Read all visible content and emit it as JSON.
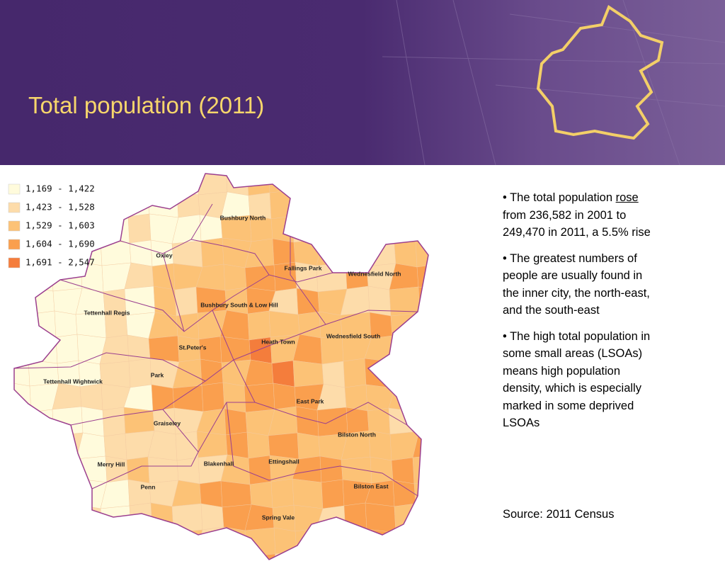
{
  "header": {
    "title": "Total population (2011)"
  },
  "legend": {
    "items": [
      {
        "label": "1,169 - 1,422",
        "color": "#fffbdc"
      },
      {
        "label": "1,423 - 1,528",
        "color": "#fddcaa"
      },
      {
        "label": "1,529 - 1,603",
        "color": "#fcc276"
      },
      {
        "label": "1,604 - 1,690",
        "color": "#fa9f4e"
      },
      {
        "label": "1,691 - 2,547",
        "color": "#f47d3c"
      }
    ]
  },
  "wards": [
    "Bushbury North",
    "Oxley",
    "Fallings Park",
    "Wednesfield North",
    "Tettenhall Regis",
    "Bushbury South & Low Hill",
    "St.Peter's",
    "Heath Town",
    "Wednesfield South",
    "Park",
    "Tettenhall Wightwick",
    "East Park",
    "Graiseley",
    "Bilston North",
    "Merry Hill",
    "Blakenhall",
    "Ettingshall",
    "Penn",
    "Bilston East",
    "Spring Vale"
  ],
  "bullets": [
    [
      "• The total population ",
      "rose",
      " from 236,582 in 2001 to 249,470 in 2011, a 5.5% rise"
    ],
    [
      "• The greatest numbers of people are usually found in the inner city, the north-east, and the south-east"
    ],
    [
      "• The high total population in some small areas (LSOAs) means high population density, which is especially marked in some deprived LSOAs"
    ]
  ],
  "source": "Source: 2011 Census"
}
